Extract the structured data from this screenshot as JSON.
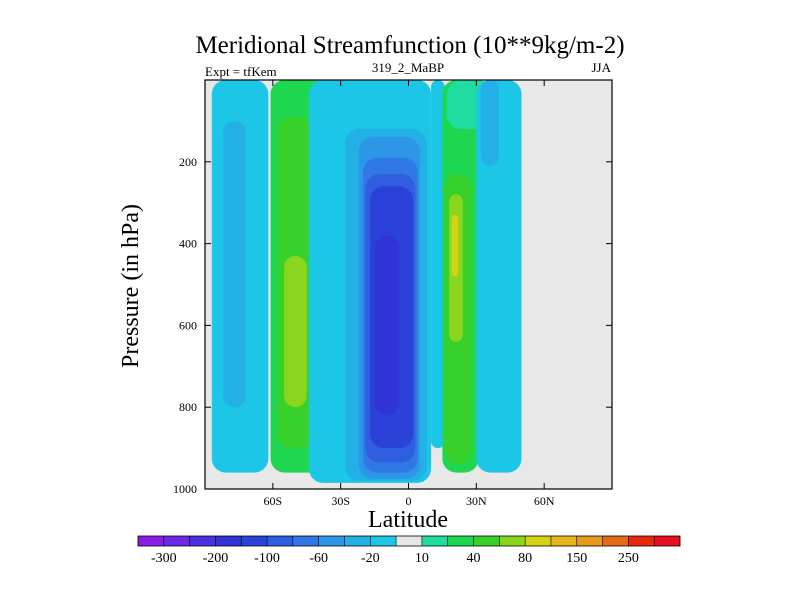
{
  "chart_data": {
    "type": "heatmap",
    "title": "Meridional Streamfunction (10**9kg/m-2)",
    "left_string": "Expt = tfKem",
    "center_string": "319_2_MaBP",
    "right_string": "JJA",
    "xlabel": "Latitude",
    "ylabel": "Pressure (in hPa)",
    "xlim": [
      -90,
      90
    ],
    "ylim": [
      1000,
      0
    ],
    "x_ticks": [
      -60,
      -30,
      0,
      30,
      60
    ],
    "x_tick_labels": [
      "60S",
      "30S",
      "0",
      "30N",
      "60N"
    ],
    "y_ticks": [
      200,
      400,
      600,
      800,
      1000
    ],
    "y_tick_labels": [
      "200",
      "400",
      "600",
      "800",
      "1000"
    ],
    "missing_color": "#e8e8e8",
    "colorbar": {
      "levels": [
        -300,
        -250,
        -200,
        -150,
        -100,
        -80,
        -60,
        -40,
        -20,
        -10,
        10,
        20,
        40,
        60,
        80,
        100,
        150,
        200,
        250,
        300
      ],
      "labels": [
        "-300",
        "-200",
        "-100",
        "-60",
        "-20",
        "10",
        "40",
        "80",
        "150",
        "250"
      ],
      "label_positions": [
        1,
        3,
        5,
        7,
        9,
        11,
        13,
        15,
        17,
        19
      ],
      "colors": [
        "#8a1ee6",
        "#6a2ae6",
        "#4a30e0",
        "#3034d6",
        "#2a42d8",
        "#2f5ee0",
        "#2f78e6",
        "#2e96e6",
        "#22b0e6",
        "#1bc6e6",
        "#e6e6e6",
        "#1fdca0",
        "#1ed650",
        "#38d02a",
        "#8ad61e",
        "#d4d214",
        "#e6b41e",
        "#e69a1e",
        "#e66a14",
        "#e62a0e",
        "#e6101e"
      ]
    },
    "regions": [
      {
        "label": "-10",
        "lat_min": -87,
        "lat_max": -62,
        "p_top": 0,
        "p_bottom": 960
      },
      {
        "label": "-20",
        "lat_min": -82,
        "lat_max": -72,
        "p_top": 100,
        "p_bottom": 800
      },
      {
        "label": "20",
        "lat_min": -61,
        "lat_max": -35,
        "p_top": 0,
        "p_bottom": 960
      },
      {
        "label": "40",
        "lat_min": -58,
        "lat_max": -42,
        "p_top": 90,
        "p_bottom": 900
      },
      {
        "label": "60",
        "lat_min": -55,
        "lat_max": -45,
        "p_top": 430,
        "p_bottom": 800
      },
      {
        "label": "-10",
        "lat_min": -44,
        "lat_max": 10,
        "p_top": 0,
        "p_bottom": 985
      },
      {
        "label": "-20",
        "lat_min": -28,
        "lat_max": 8,
        "p_top": 120,
        "p_bottom": 980
      },
      {
        "label": "-40",
        "lat_min": -22,
        "lat_max": 5,
        "p_top": 140,
        "p_bottom": 975
      },
      {
        "label": "-60",
        "lat_min": -20,
        "lat_max": 4,
        "p_top": 190,
        "p_bottom": 960
      },
      {
        "label": "-80",
        "lat_min": -19,
        "lat_max": 3,
        "p_top": 230,
        "p_bottom": 935
      },
      {
        "label": "-100",
        "lat_min": -17,
        "lat_max": 2,
        "p_top": 260,
        "p_bottom": 900
      },
      {
        "label": "-150",
        "lat_min": -15,
        "lat_max": -4,
        "p_top": 380,
        "p_bottom": 820
      },
      {
        "label": "-10",
        "lat_min": 10,
        "lat_max": 16,
        "p_top": 0,
        "p_bottom": 900
      },
      {
        "label": "20",
        "lat_min": 15,
        "lat_max": 31,
        "p_top": 0,
        "p_bottom": 960
      },
      {
        "label": "40",
        "lat_min": 16,
        "lat_max": 28,
        "p_top": 230,
        "p_bottom": 940
      },
      {
        "label": "60",
        "lat_min": 18,
        "lat_max": 24,
        "p_top": 280,
        "p_bottom": 640
      },
      {
        "label": "80",
        "lat_min": 19,
        "lat_max": 22,
        "p_top": 330,
        "p_bottom": 480
      },
      {
        "label": "10",
        "lat_min": 17,
        "lat_max": 37,
        "p_top": 0,
        "p_bottom": 120
      },
      {
        "label": "-10",
        "lat_min": 30,
        "lat_max": 50,
        "p_top": 0,
        "p_bottom": 960
      },
      {
        "label": "-20",
        "lat_min": 32,
        "lat_max": 40,
        "p_top": 0,
        "p_bottom": 210
      }
    ]
  }
}
